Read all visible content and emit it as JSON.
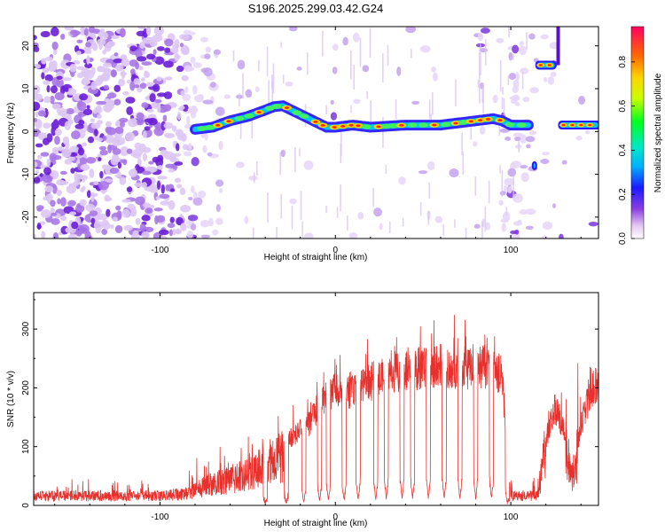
{
  "title": "S196.2025.299.03.42.G24",
  "chart_data": [
    {
      "type": "heatmap",
      "name": "spectrogram",
      "xlabel": "Height of straight line (km)",
      "ylabel": "Frequency (Hz)",
      "xlim": [
        -172,
        150
      ],
      "ylim": [
        -25,
        24.5
      ],
      "xticks": [
        -100,
        0,
        100
      ],
      "yticks": [
        -20,
        -10,
        0,
        10,
        20
      ],
      "colorbar": {
        "label": "Normalized spectral amplitude",
        "ticks": [
          0.0,
          0.2,
          0.4,
          0.6,
          0.8
        ],
        "range": [
          0,
          0.96
        ]
      },
      "ridge": {
        "x": [
          -80,
          -70,
          -60,
          -50,
          -40,
          -35,
          -30,
          -25,
          -20,
          -15,
          -10,
          -5,
          0,
          10,
          20,
          40,
          60,
          80,
          90,
          95,
          100,
          110
        ],
        "y": [
          0.5,
          1.0,
          2.5,
          3.5,
          5.0,
          5.8,
          6.0,
          5.0,
          4.0,
          3.0,
          2.0,
          1.0,
          1.0,
          1.5,
          1.0,
          1.5,
          1.5,
          2.5,
          3.0,
          2.5,
          1.5,
          1.5
        ]
      },
      "features": [
        {
          "x": [
            115,
            125
          ],
          "y": 15.5,
          "label": "high-frequency segment"
        },
        {
          "x": [
            128,
            150
          ],
          "y": 1.5,
          "label": "post-gap segment"
        },
        {
          "x": [
            113,
            114
          ],
          "y": -8,
          "label": "isolated blob"
        }
      ]
    },
    {
      "type": "line",
      "name": "snr",
      "xlabel": "Height of straight line (km)",
      "ylabel": "SNR (10 * v/v)",
      "xlim": [
        -172,
        150
      ],
      "ylim": [
        0,
        362
      ],
      "xticks": [
        -100,
        0,
        100
      ],
      "yticks": [
        0,
        100,
        200,
        300
      ],
      "envelope": {
        "x": [
          -172,
          -100,
          -85,
          -75,
          -65,
          -55,
          -45,
          -35,
          -25,
          -15,
          -10,
          -5,
          0,
          5,
          10,
          20,
          30,
          40,
          50,
          60,
          70,
          80,
          90,
          95,
          100,
          110,
          115,
          120,
          125,
          130,
          135,
          140,
          145,
          150
        ],
        "y": [
          20,
          20,
          25,
          40,
          50,
          60,
          75,
          95,
          125,
          150,
          180,
          195,
          210,
          200,
          215,
          225,
          240,
          250,
          250,
          255,
          250,
          255,
          250,
          240,
          20,
          20,
          20,
          120,
          180,
          140,
          60,
          150,
          200,
          230
        ]
      },
      "dips": [
        -40,
        -28,
        -18,
        -9,
        -4,
        5,
        13,
        23,
        29,
        38,
        44,
        53,
        62,
        71,
        80,
        89,
        98
      ]
    }
  ]
}
